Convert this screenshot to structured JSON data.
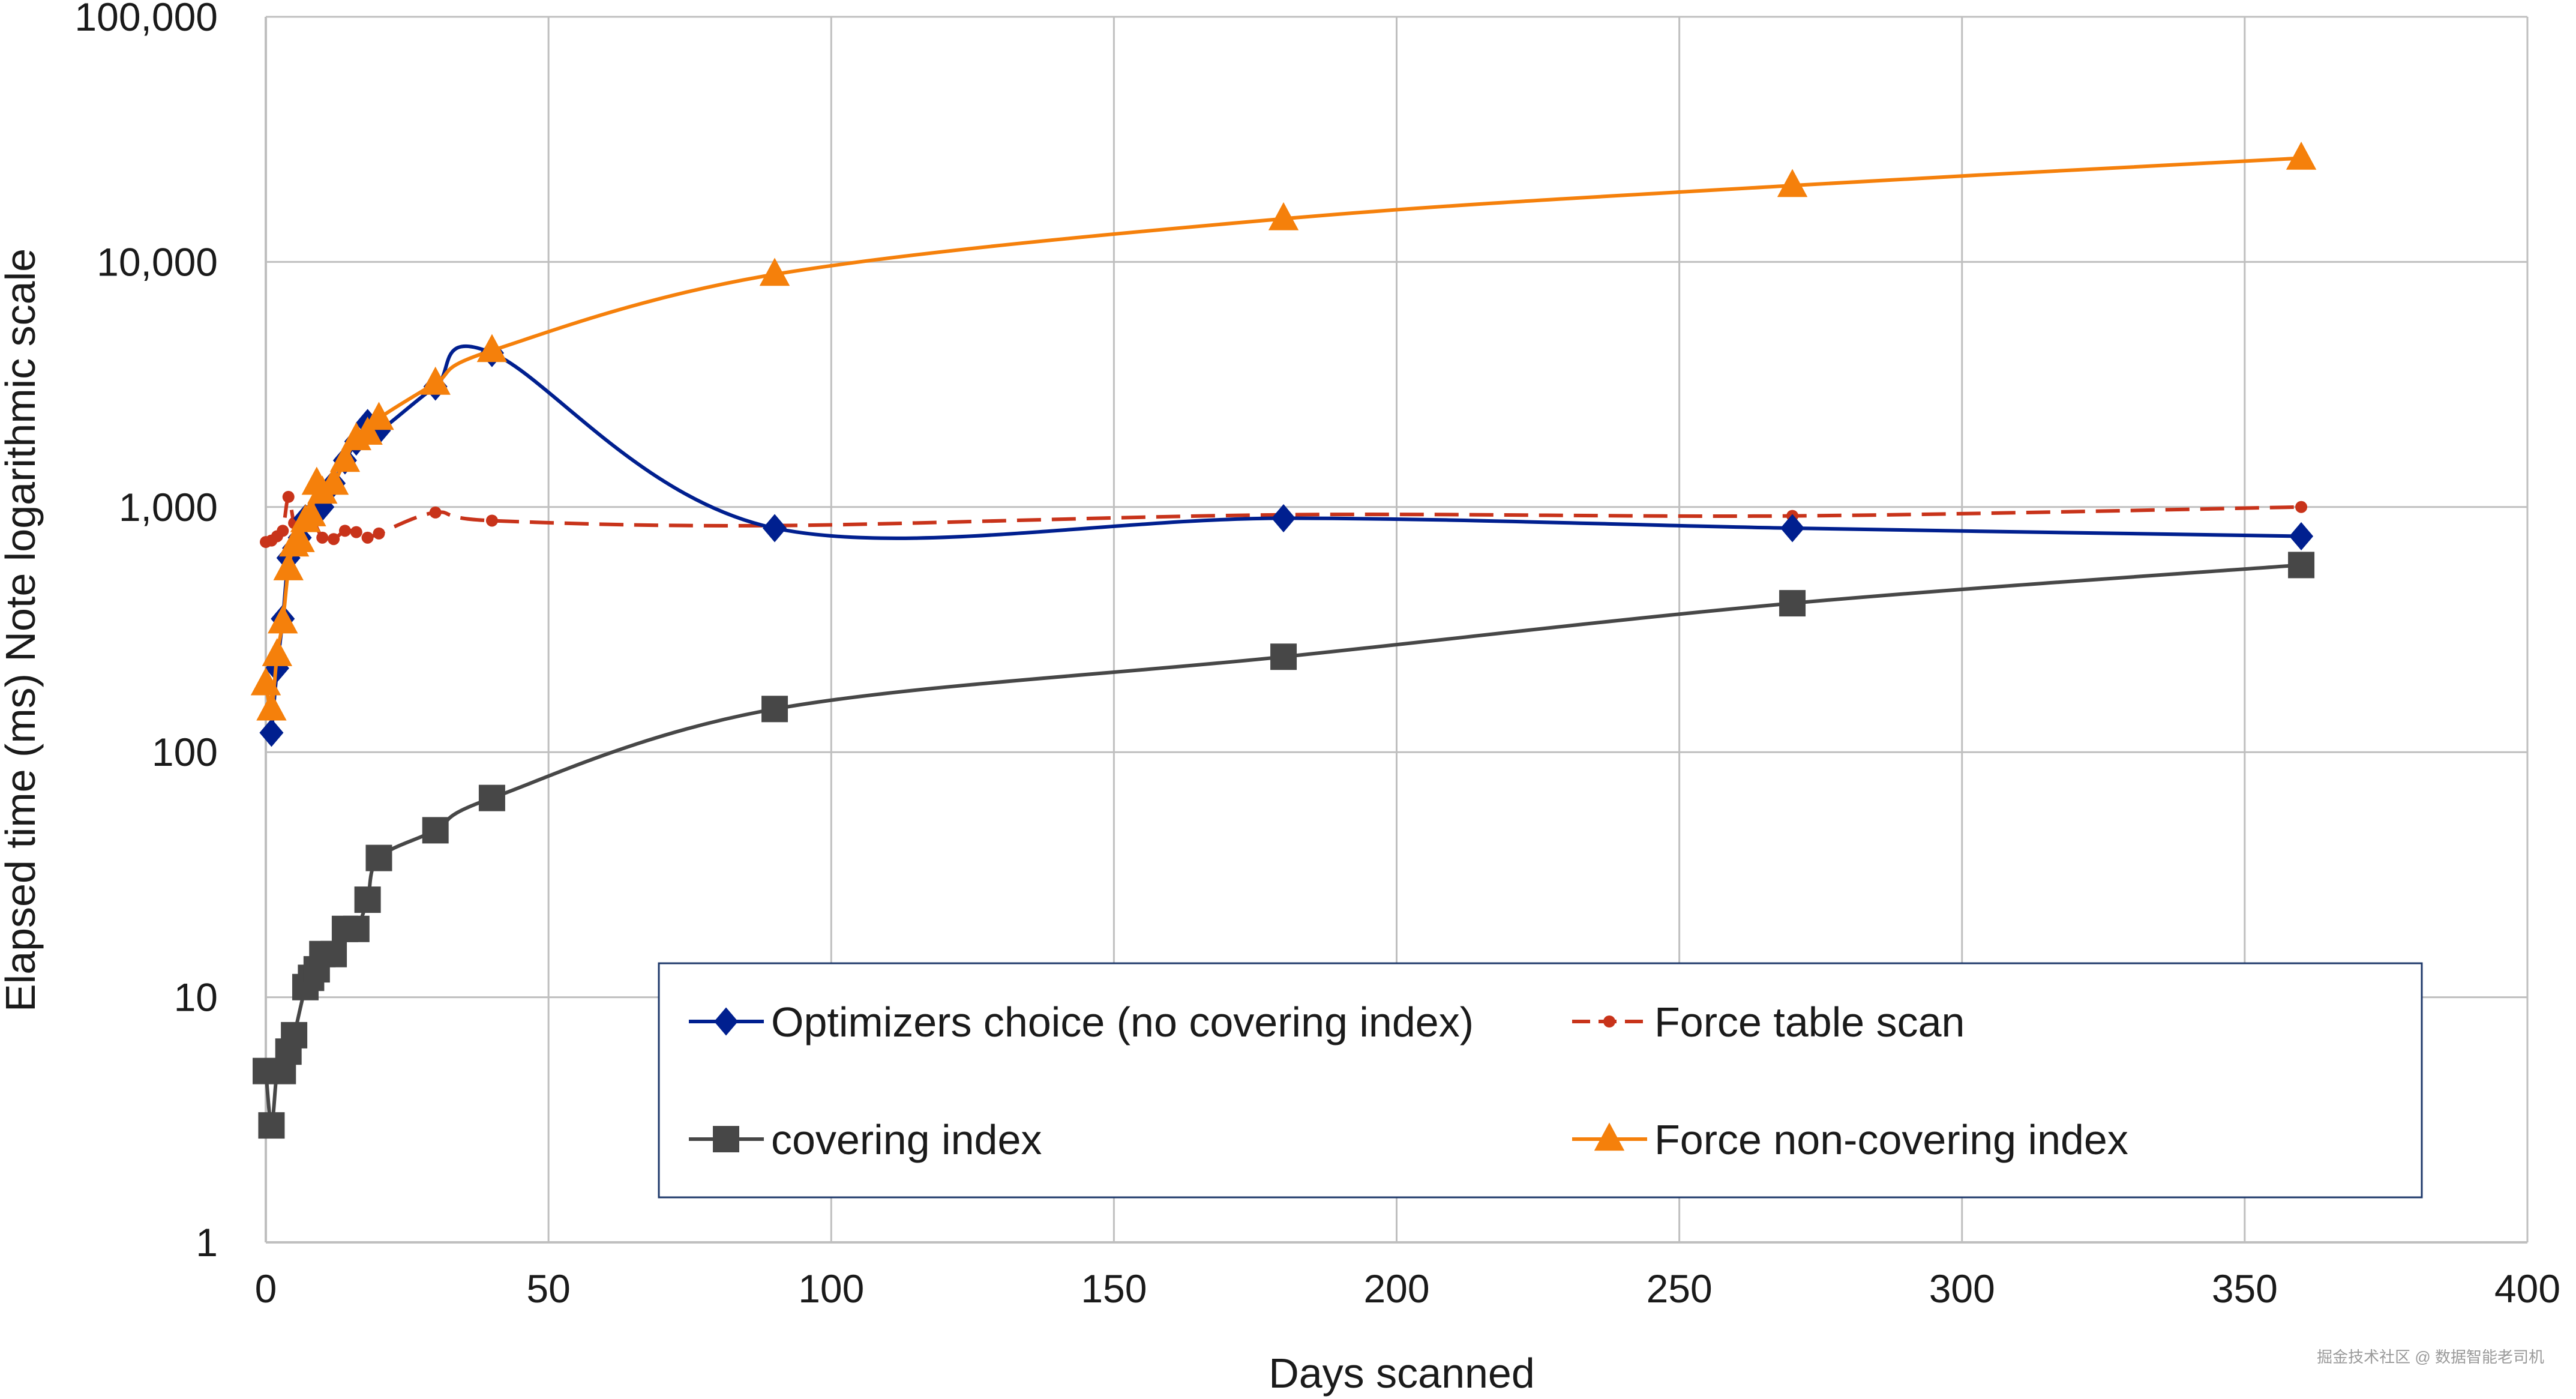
{
  "chart_data": {
    "type": "line",
    "title": "",
    "xlabel": "Days scanned",
    "ylabel": "Elapsed time (ms) Note logarithmic scale",
    "xlim": [
      0,
      400
    ],
    "ylim": [
      1,
      100000
    ],
    "yscale": "log",
    "x_ticks": [
      "0",
      "50",
      "100",
      "150",
      "200",
      "250",
      "300",
      "350",
      "400"
    ],
    "y_ticks": [
      "1",
      "10",
      "100",
      "1,000",
      "10,000",
      "100,000"
    ],
    "grid": true,
    "legend_position": "inside-bottom-right",
    "series": [
      {
        "name": "Optimizers choice (no covering index)",
        "color": "#001F8F",
        "marker": "diamond",
        "line_style": "solid",
        "x": [
          1,
          2,
          3,
          4,
          5,
          6,
          7,
          8,
          10,
          12,
          14,
          16,
          18,
          20,
          30,
          40,
          90,
          180,
          270,
          360
        ],
        "y": [
          120,
          220,
          350,
          620,
          680,
          750,
          900,
          930,
          1000,
          1250,
          1550,
          1850,
          2200,
          2050,
          3100,
          4250,
          820,
          900,
          820,
          760
        ]
      },
      {
        "name": "Force table scan",
        "color": "#C8331A",
        "marker": "dot",
        "line_style": "dashed",
        "x": [
          0,
          1,
          2,
          3,
          4,
          5,
          6,
          7,
          8,
          10,
          12,
          14,
          16,
          18,
          20,
          30,
          40,
          90,
          180,
          270,
          360
        ],
        "y": [
          720,
          730,
          760,
          800,
          1100,
          860,
          880,
          900,
          920,
          750,
          740,
          800,
          790,
          750,
          780,
          950,
          880,
          840,
          930,
          920,
          1000
        ]
      },
      {
        "name": "covering index",
        "color": "#474747",
        "marker": "square",
        "line_style": "solid",
        "x": [
          0,
          1,
          2,
          3,
          4,
          5,
          7,
          8,
          9,
          10,
          12,
          14,
          16,
          18,
          20,
          30,
          40,
          90,
          180,
          270,
          360
        ],
        "y": [
          5,
          3,
          5,
          5,
          6,
          7,
          11,
          12,
          13,
          15,
          15,
          19,
          19,
          25,
          37,
          48,
          65,
          150,
          245,
          405,
          580
        ]
      },
      {
        "name": "Force non-covering index",
        "color": "#F5800B",
        "marker": "triangle",
        "line_style": "solid",
        "x": [
          0,
          1,
          2,
          3,
          4,
          5,
          6,
          7,
          8,
          9,
          10,
          12,
          14,
          16,
          18,
          20,
          30,
          40,
          90,
          180,
          270,
          360
        ],
        "y": [
          190,
          150,
          250,
          340,
          560,
          700,
          730,
          880,
          930,
          1250,
          1150,
          1250,
          1550,
          1900,
          2000,
          2300,
          3200,
          4350,
          8900,
          15000,
          20500,
          26500
        ]
      }
    ]
  },
  "watermark": "掘金技术社区 @ 数据智能老司机"
}
